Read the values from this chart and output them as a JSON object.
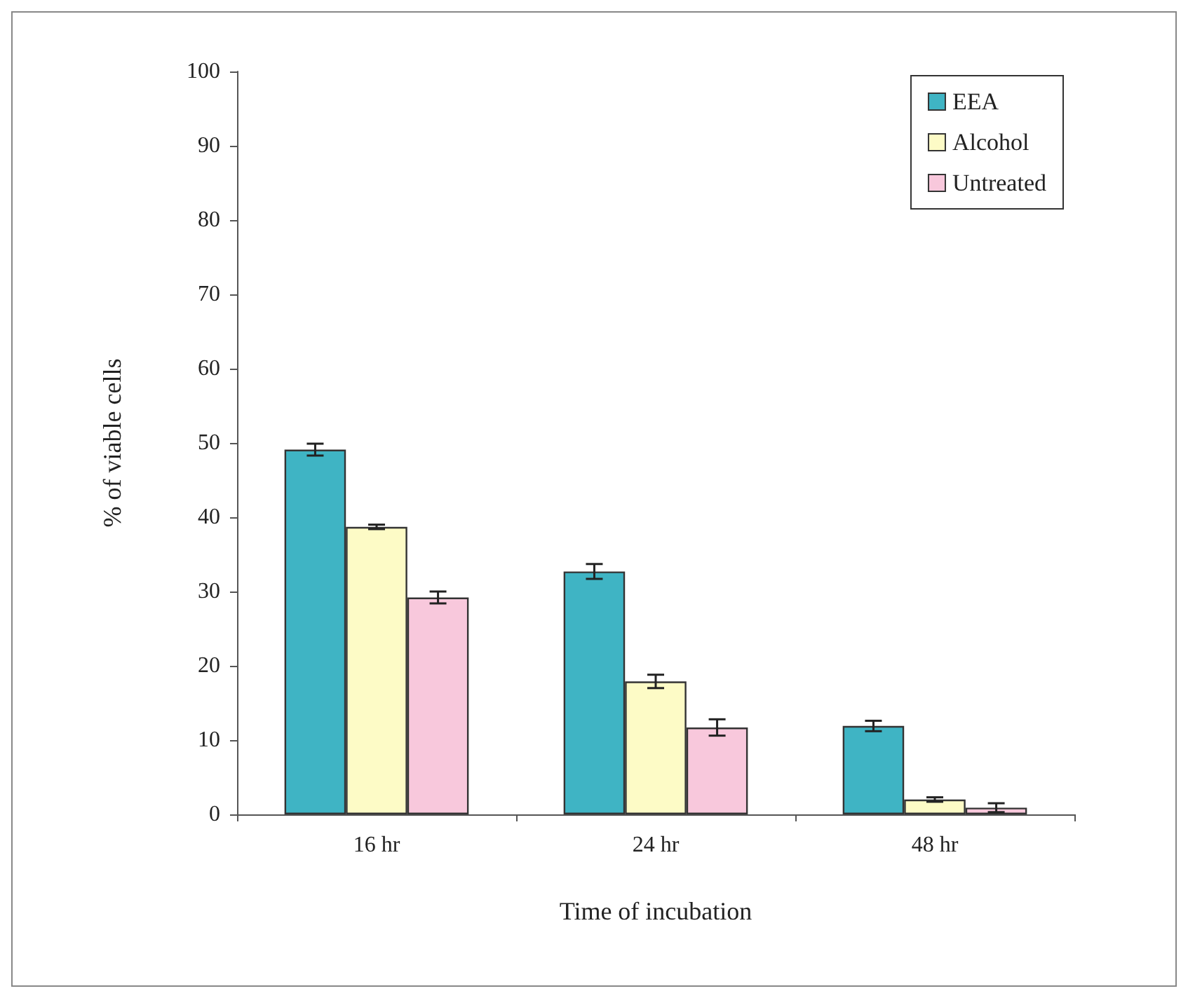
{
  "chart_data": {
    "type": "bar",
    "xlabel": "Time of incubation",
    "ylabel": "% of viable cells",
    "categories": [
      "16 hr",
      "24 hr",
      "48 hr"
    ],
    "series": [
      {
        "name": "EEA",
        "color": "#3fb4c4",
        "values": [
          49.1,
          32.7,
          11.9
        ],
        "errors": [
          0.8,
          1.0,
          0.7
        ]
      },
      {
        "name": "Alcohol",
        "color": "#fdfbc6",
        "values": [
          38.7,
          17.9,
          2.0
        ],
        "errors": [
          0.3,
          0.9,
          0.3
        ]
      },
      {
        "name": "Untreated",
        "color": "#f8c8dc",
        "values": [
          29.2,
          11.7,
          0.9
        ],
        "errors": [
          0.8,
          1.1,
          0.6
        ]
      }
    ],
    "ylim": [
      0,
      100
    ],
    "yticks": [
      0,
      10,
      20,
      30,
      40,
      50,
      60,
      70,
      80,
      90,
      100
    ],
    "grid": false,
    "legend": "top right"
  }
}
